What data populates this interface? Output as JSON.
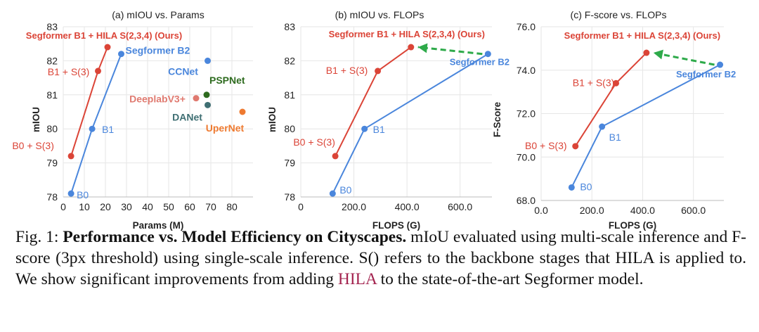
{
  "colors": {
    "red": "#db4437",
    "blue": "#4a86dc",
    "green": "#2e6b1f",
    "teal": "#3f6f73",
    "pink": "#e07a70",
    "orange": "#ee7a30",
    "arrow": "#2eaa4a",
    "grid": "#e6e6e6"
  },
  "chart_data": [
    {
      "type": "scatter",
      "title": "(a) mIOU vs. Params",
      "xlabel": "Params (M)",
      "ylabel": "mIOU",
      "xlim": [
        0,
        90
      ],
      "ylim": [
        78,
        83
      ],
      "xticks": [
        "0",
        "10",
        "20",
        "30",
        "40",
        "50",
        "60",
        "70",
        "80"
      ],
      "yticks": [
        "78",
        "79",
        "80",
        "81",
        "82",
        "83"
      ],
      "grid": true,
      "series": [
        {
          "color_key": "red",
          "line": true,
          "points": [
            {
              "x": 3.7,
              "y": 79.2,
              "label": "B0 + S(3)"
            },
            {
              "x": 16.5,
              "y": 81.7,
              "label": "B1 + S(3)"
            },
            {
              "x": 21,
              "y": 82.4,
              "label": "Segformer B1 + HILA  S(2,3,4) (Ours)"
            }
          ]
        },
        {
          "color_key": "blue",
          "line": true,
          "points": [
            {
              "x": 3.7,
              "y": 78.1,
              "label": "B0"
            },
            {
              "x": 13.7,
              "y": 80.0,
              "label": "B1"
            },
            {
              "x": 27.5,
              "y": 82.2,
              "label": "Segformer B2"
            }
          ]
        },
        {
          "color_key": "blue",
          "line": false,
          "points": [
            {
              "x": 68.5,
              "y": 82.0,
              "label": "CCNet"
            }
          ]
        },
        {
          "color_key": "green",
          "line": false,
          "points": [
            {
              "x": 68,
              "y": 81.0,
              "label": "PSPNet"
            }
          ]
        },
        {
          "color_key": "pink",
          "line": false,
          "points": [
            {
              "x": 63,
              "y": 80.9,
              "label": "DeeplabV3+"
            }
          ]
        },
        {
          "color_key": "teal",
          "line": false,
          "points": [
            {
              "x": 68.5,
              "y": 80.7,
              "label": "DANet"
            }
          ]
        },
        {
          "color_key": "orange",
          "line": false,
          "points": [
            {
              "x": 85,
              "y": 80.5,
              "label": "UperNet"
            }
          ]
        }
      ]
    },
    {
      "type": "line",
      "title": "(b)  mIOU vs. FLOPs",
      "xlabel": "FLOPS (G)",
      "ylabel": "mIOU",
      "xlim": [
        0,
        720
      ],
      "ylim": [
        78,
        83
      ],
      "xticks": [
        "0",
        "200.0",
        "400.0",
        "600.0"
      ],
      "yticks": [
        "78",
        "79",
        "80",
        "81",
        "82",
        "83"
      ],
      "grid": true,
      "series": [
        {
          "color_key": "red",
          "line": true,
          "points": [
            {
              "x": 130,
              "y": 79.2,
              "label": "B0 + S(3)"
            },
            {
              "x": 290,
              "y": 81.7,
              "label": "B1 + S(3)"
            },
            {
              "x": 415,
              "y": 82.4,
              "label": "Segformer B1 + HILA  S(2,3,4) (Ours)"
            }
          ]
        },
        {
          "color_key": "blue",
          "line": true,
          "points": [
            {
              "x": 120,
              "y": 78.1,
              "label": "B0"
            },
            {
              "x": 240,
              "y": 80.0,
              "label": "B1"
            },
            {
              "x": 705,
              "y": 82.2,
              "label": "Segformer B2"
            }
          ]
        }
      ],
      "arrow": {
        "from": [
          705,
          82.2
        ],
        "to": [
          415,
          82.4
        ]
      }
    },
    {
      "type": "line",
      "title": "(c) F-score vs. FLOPs",
      "xlabel": "FLOPS (G)",
      "ylabel": "F-Score",
      "xlim": [
        0,
        720
      ],
      "ylim": [
        68,
        76
      ],
      "xticks": [
        "0.0",
        "200.0",
        "400.0",
        "600.0"
      ],
      "yticks": [
        "68.0",
        "70.0",
        "72.0",
        "74.0",
        "76.0"
      ],
      "grid": true,
      "series": [
        {
          "color_key": "red",
          "line": true,
          "points": [
            {
              "x": 135,
              "y": 70.5,
              "label": "B0 + S(3)"
            },
            {
              "x": 295,
              "y": 73.4,
              "label": "B1 + S(3)"
            },
            {
              "x": 415,
              "y": 74.8,
              "label": "Segformer B1 + HILA  S(2,3,4) (Ours)"
            }
          ]
        },
        {
          "color_key": "blue",
          "line": true,
          "points": [
            {
              "x": 120,
              "y": 68.6,
              "label": "B0"
            },
            {
              "x": 240,
              "y": 71.4,
              "label": "B1"
            },
            {
              "x": 705,
              "y": 74.25,
              "label": "Segformer B2"
            }
          ]
        }
      ],
      "arrow": {
        "from": [
          705,
          74.25
        ],
        "to": [
          415,
          74.8
        ]
      }
    }
  ],
  "caption": {
    "prefix": "Fig. 1: ",
    "bold": "Performance vs. Model Efficiency on Cityscapes.",
    "text1": " mIoU evaluated using multi-scale inference and F-score (3px threshold) using single-scale inference. S() refers to the backbone stages that HILA is applied to. We show significant improvements from adding ",
    "highlight": "HILA",
    "text2": " to the state-of-the-art Segformer model."
  }
}
